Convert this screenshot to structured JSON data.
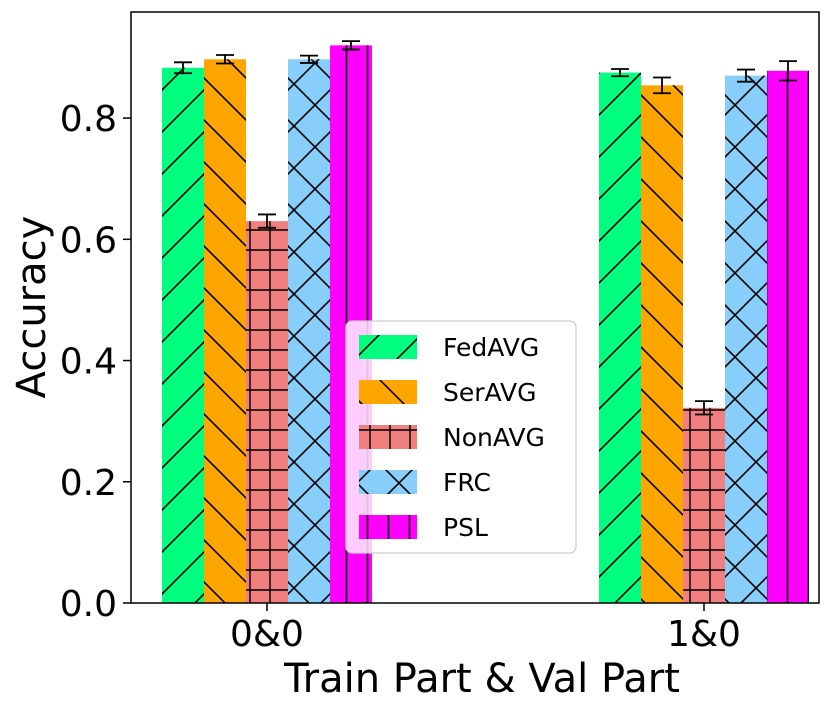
{
  "chart_data": {
    "type": "bar",
    "title": "",
    "xlabel": "Train Part & Val Part",
    "ylabel": "Accuracy",
    "ylim": [
      0,
      0.975
    ],
    "yticks": [
      0.0,
      0.2,
      0.4,
      0.6,
      0.8
    ],
    "ytick_labels": [
      "0.0",
      "0.2",
      "0.4",
      "0.6",
      "0.8"
    ],
    "categories": [
      "0&0",
      "1&0"
    ],
    "series": [
      {
        "name": "FedAVG",
        "values": [
          0.883,
          0.875
        ],
        "errors": [
          0.009,
          0.006
        ],
        "color": "#00ff7f",
        "hatch": "fslash"
      },
      {
        "name": "SerAVG",
        "values": [
          0.897,
          0.854
        ],
        "errors": [
          0.007,
          0.013
        ],
        "color": "#ffa500",
        "hatch": "bslash"
      },
      {
        "name": "NonAVG",
        "values": [
          0.63,
          0.322
        ],
        "errors": [
          0.011,
          0.011
        ],
        "color": "#f08080",
        "hatch": "grid"
      },
      {
        "name": "FRC",
        "values": [
          0.897,
          0.87
        ],
        "errors": [
          0.006,
          0.01
        ],
        "color": "#87cefa",
        "hatch": "cross"
      },
      {
        "name": "PSL",
        "values": [
          0.92,
          0.878
        ],
        "errors": [
          0.007,
          0.016
        ],
        "color": "#ff00ff",
        "hatch": "vline"
      }
    ],
    "legend_position": "center",
    "grid": false
  }
}
